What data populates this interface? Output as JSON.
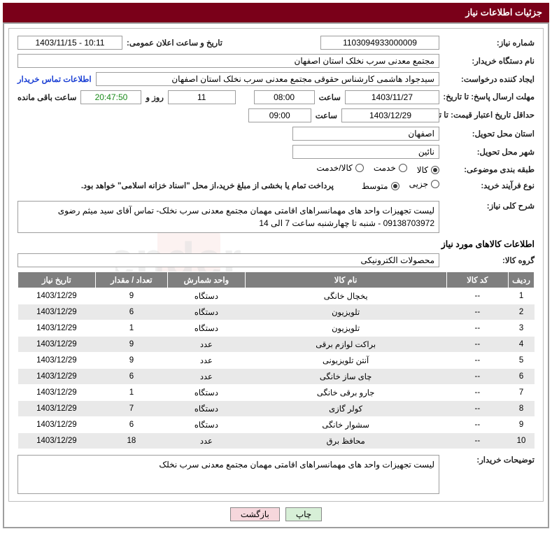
{
  "header": {
    "title": "جزئیات اطلاعات نیاز"
  },
  "labels": {
    "need_no": "شماره نیاز:",
    "announce_dt": "تاریخ و ساعت اعلان عمومی:",
    "buyer_org": "نام دستگاه خریدار:",
    "requester": "ایجاد کننده درخواست:",
    "buyer_contact": "اطلاعات تماس خریدار",
    "reply_deadline": "مهلت ارسال پاسخ: تا تاریخ:",
    "time_word": "ساعت",
    "days_and": "روز و",
    "remaining": "ساعت باقی مانده",
    "price_valid": "حداقل تاریخ اعتبار قیمت: تا تاریخ:",
    "delivery_prov": "استان محل تحویل:",
    "delivery_city": "شهر محل تحویل:",
    "subject_class": "طبقه بندی موضوعی:",
    "purchase_type": "نوع فرآیند خرید:",
    "payment_note": "پرداخت تمام یا بخشی از مبلغ خرید،از محل \"اسناد خزانه اسلامی\" خواهد بود.",
    "general_desc": "شرح کلی نیاز:",
    "goods_info": "اطلاعات کالاهای مورد نیاز",
    "goods_group": "گروه کالا:",
    "buyer_notes": "توضیحات خریدار:"
  },
  "fields": {
    "need_no": "1103094933000009",
    "announce_dt": "1403/11/15 - 10:11",
    "buyer_org": "مجتمع معدنی سرب نخلک استان اصفهان",
    "requester": "سیدجواد هاشمی کارشناس حقوقی مجتمع معدنی سرب نخلک استان اصفهان",
    "reply_date": "1403/11/27",
    "reply_time": "08:00",
    "reply_days": "11",
    "reply_countdown": "20:47:50",
    "price_date": "1403/12/29",
    "price_time": "09:00",
    "delivery_prov": "اصفهان",
    "delivery_city": "نائین",
    "general_desc": "لیست تجهیزات واحد های مهمانسراهای اقامتی مهمان مجتمع معدنی سرب نخلک- تماس آقای سید میثم رضوی 09138703972 - شنبه تا چهارشنبه ساعت 7 الی 14",
    "goods_group": "محصولات الکترونیکی",
    "buyer_notes": "لیست تجهیزات واحد های مهمانسراهای اقامتی مهمان مجتمع معدنی سرب نخلک"
  },
  "radios": {
    "subject": [
      {
        "label": "کالا",
        "checked": true
      },
      {
        "label": "خدمت",
        "checked": false
      },
      {
        "label": "کالا/خدمت",
        "checked": false
      }
    ],
    "purchase": [
      {
        "label": "جزیی",
        "checked": false
      },
      {
        "label": "متوسط",
        "checked": true
      }
    ]
  },
  "table": {
    "columns": [
      "ردیف",
      "کد کالا",
      "نام کالا",
      "واحد شمارش",
      "تعداد / مقدار",
      "تاریخ نیاز"
    ],
    "col_widths": [
      "5%",
      "12%",
      "39%",
      "15%",
      "14%",
      "15%"
    ],
    "rows": [
      [
        "1",
        "--",
        "یخچال خانگی",
        "دستگاه",
        "9",
        "1403/12/29"
      ],
      [
        "2",
        "--",
        "تلویزیون",
        "دستگاه",
        "6",
        "1403/12/29"
      ],
      [
        "3",
        "--",
        "تلویزیون",
        "دستگاه",
        "1",
        "1403/12/29"
      ],
      [
        "4",
        "--",
        "براکت لوازم برقی",
        "عدد",
        "9",
        "1403/12/29"
      ],
      [
        "5",
        "--",
        "آنتن تلویزیونی",
        "عدد",
        "9",
        "1403/12/29"
      ],
      [
        "6",
        "--",
        "چای ساز خانگی",
        "عدد",
        "6",
        "1403/12/29"
      ],
      [
        "7",
        "--",
        "جارو برقی خانگی",
        "دستگاه",
        "1",
        "1403/12/29"
      ],
      [
        "8",
        "--",
        "کولر گازی",
        "دستگاه",
        "7",
        "1403/12/29"
      ],
      [
        "9",
        "--",
        "سشوار خانگی",
        "دستگاه",
        "6",
        "1403/12/29"
      ],
      [
        "10",
        "--",
        "محافظ برق",
        "عدد",
        "18",
        "1403/12/29"
      ]
    ]
  },
  "buttons": {
    "print": "چاپ",
    "back": "بازگشت"
  },
  "styling": {
    "header_bg": "#7a0019",
    "grid_header_bg": "#7f7f7f",
    "row_alt_bg": "#e9e9e9",
    "link_color": "#1a3fd4",
    "watermark_color": "#c7301f"
  }
}
